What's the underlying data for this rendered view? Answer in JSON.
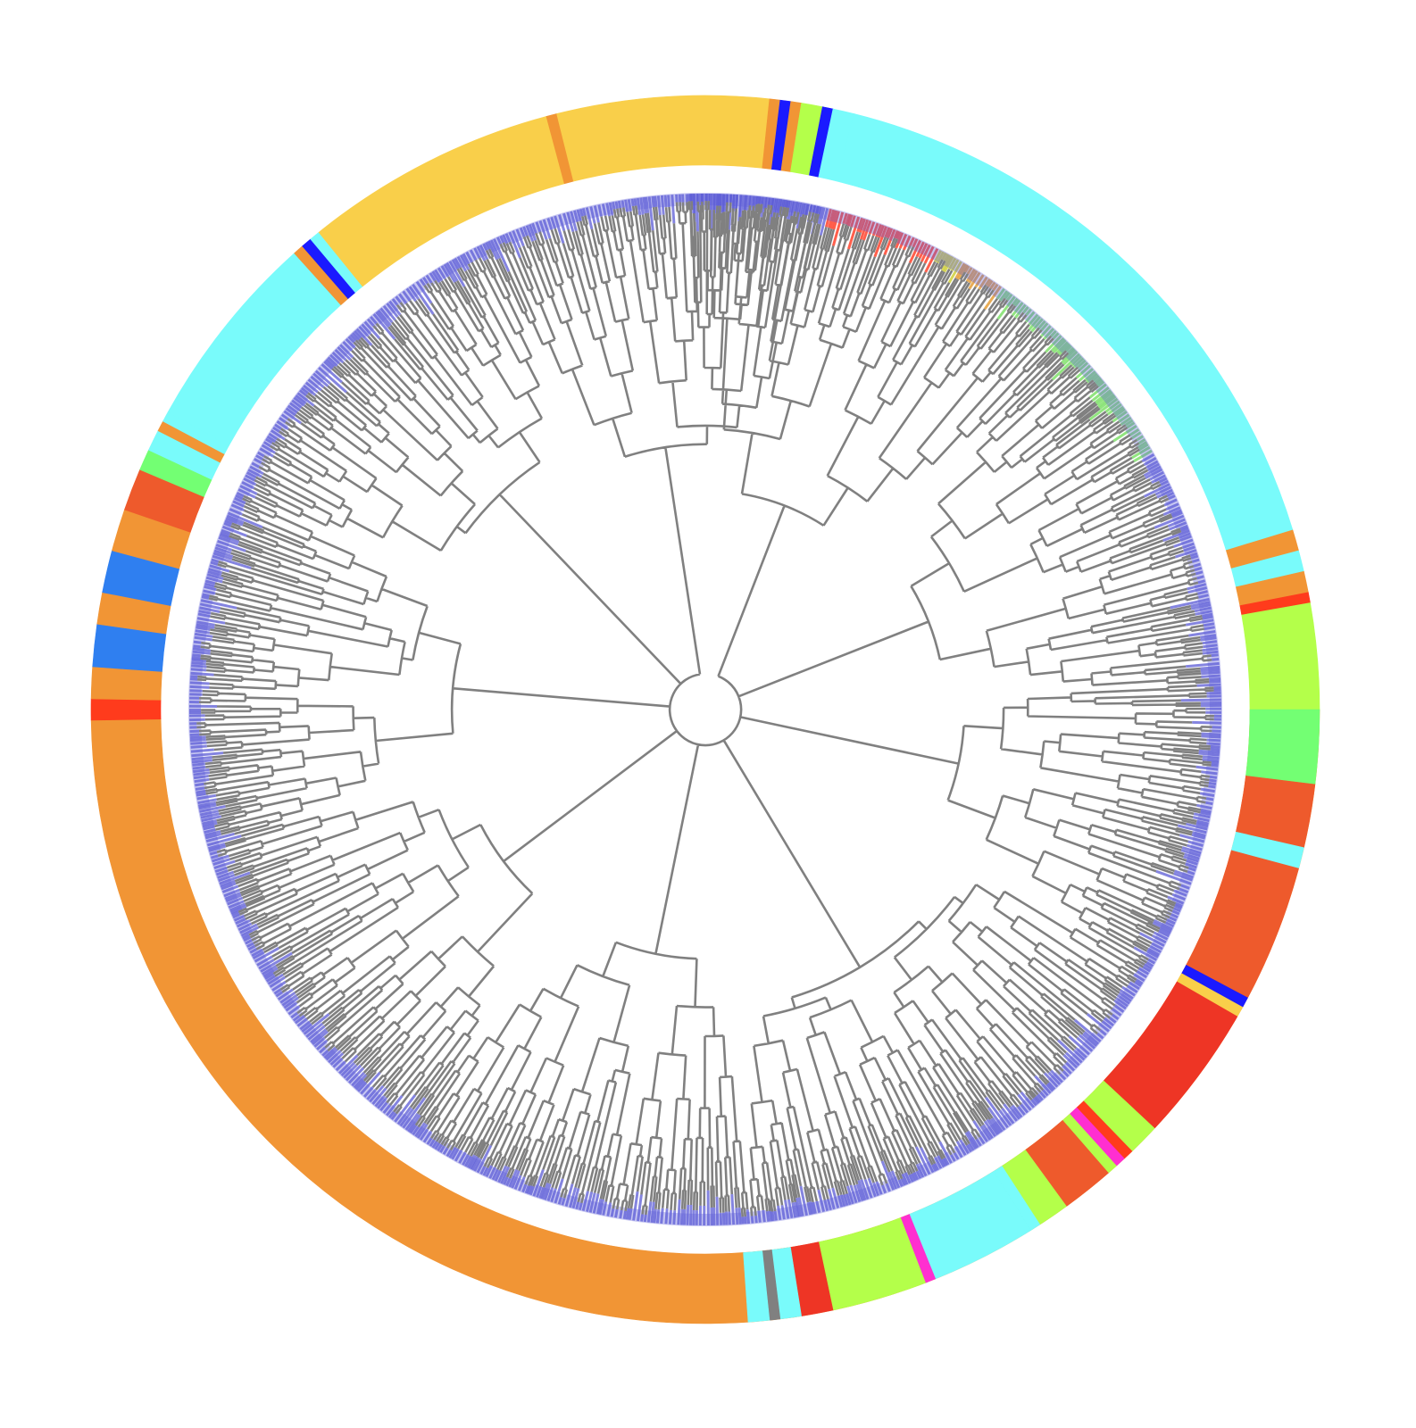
{
  "figure": {
    "type": "circular-phylogenetic-tree",
    "colors": {
      "background": "#ffffff",
      "branch": "#808080",
      "tip_blue": "#5b5bd6",
      "tip_green": "#6edc55",
      "tip_red": "#ff2a10",
      "tip_olive": "#c8c820",
      "tip_orange": "#e0901e"
    },
    "ring_segments": [
      {
        "from_deg": 0,
        "to_deg": 179,
        "color": "#f19535"
      },
      {
        "from_deg": 179,
        "to_deg": 181,
        "color": "#ff3b1c"
      },
      {
        "from_deg": 181,
        "to_deg": 184,
        "color": "#f19535"
      },
      {
        "from_deg": 184,
        "to_deg": 188,
        "color": "#2f7ff0"
      },
      {
        "from_deg": 188,
        "to_deg": 191,
        "color": "#f19535"
      },
      {
        "from_deg": 191,
        "to_deg": 195,
        "color": "#2f7ff0"
      },
      {
        "from_deg": 195,
        "to_deg": 199,
        "color": "#f19535"
      },
      {
        "from_deg": 199,
        "to_deg": 203,
        "color": "#ee5a2c"
      },
      {
        "from_deg": 203,
        "to_deg": 205,
        "color": "#73ff73"
      },
      {
        "from_deg": 205,
        "to_deg": 207,
        "color": "#79fbfb"
      },
      {
        "from_deg": 207,
        "to_deg": 208,
        "color": "#f19535"
      },
      {
        "from_deg": 208,
        "to_deg": 209,
        "color": "#79fbfb"
      },
      {
        "from_deg": 209,
        "to_deg": 228,
        "color": "#79fbfb"
      },
      {
        "from_deg": 228,
        "to_deg": 229,
        "color": "#f19535"
      },
      {
        "from_deg": 229,
        "to_deg": 230,
        "color": "#1a1aff"
      },
      {
        "from_deg": 230,
        "to_deg": 231,
        "color": "#79fbfb"
      },
      {
        "from_deg": 231,
        "to_deg": 255,
        "color": "#f9cf4a"
      },
      {
        "from_deg": 255,
        "to_deg": 256,
        "color": "#f19535"
      },
      {
        "from_deg": 256,
        "to_deg": 276,
        "color": "#f9cf4a"
      },
      {
        "from_deg": 276,
        "to_deg": 277,
        "color": "#f19535"
      },
      {
        "from_deg": 277,
        "to_deg": 278,
        "color": "#1a1aff"
      },
      {
        "from_deg": 278,
        "to_deg": 279,
        "color": "#f19535"
      },
      {
        "from_deg": 279,
        "to_deg": 281,
        "color": "#b4ff4a"
      },
      {
        "from_deg": 281,
        "to_deg": 282,
        "color": "#1a1aff"
      },
      {
        "from_deg": 282,
        "to_deg": 284,
        "color": "#79fbfb"
      },
      {
        "from_deg": 284,
        "to_deg": 343,
        "color": "#79fbfb"
      },
      {
        "from_deg": 343,
        "to_deg": 345,
        "color": "#f19535"
      },
      {
        "from_deg": 345,
        "to_deg": 347,
        "color": "#79fbfb"
      },
      {
        "from_deg": 347,
        "to_deg": 349,
        "color": "#f19535"
      },
      {
        "from_deg": 349,
        "to_deg": 350,
        "color": "#ff3b1c"
      },
      {
        "from_deg": 350,
        "to_deg": 360,
        "color": "#b4ff4a"
      },
      {
        "from_deg": 360,
        "to_deg": 367,
        "color": "#73ff73"
      },
      {
        "from_deg": 367,
        "to_deg": 373,
        "color": "#ee5a2c"
      },
      {
        "from_deg": 373,
        "to_deg": 375,
        "color": "#79fbfb"
      },
      {
        "from_deg": 375,
        "to_deg": 388,
        "color": "#ee5a2c"
      },
      {
        "from_deg": 388,
        "to_deg": 389,
        "color": "#1a1aff"
      },
      {
        "from_deg": 389,
        "to_deg": 390,
        "color": "#f9cf4a"
      },
      {
        "from_deg": 390,
        "to_deg": 403,
        "color": "#ee3525"
      },
      {
        "from_deg": 403,
        "to_deg": 406,
        "color": "#b4ff4a"
      },
      {
        "from_deg": 406,
        "to_deg": 407,
        "color": "#ff3b1c"
      },
      {
        "from_deg": 407,
        "to_deg": 408,
        "color": "#ff2fd0"
      },
      {
        "from_deg": 408,
        "to_deg": 409,
        "color": "#b4ff4a"
      },
      {
        "from_deg": 409,
        "to_deg": 414,
        "color": "#ee5a2c"
      },
      {
        "from_deg": 414,
        "to_deg": 417,
        "color": "#b4ff4a"
      },
      {
        "from_deg": 417,
        "to_deg": 418,
        "color": "#79fbfb"
      },
      {
        "from_deg": 418,
        "to_deg": 428,
        "color": "#79fbfb"
      },
      {
        "from_deg": 428,
        "to_deg": 429,
        "color": "#ff2fd0"
      },
      {
        "from_deg": 429,
        "to_deg": 438,
        "color": "#b4ff4a"
      },
      {
        "from_deg": 438,
        "to_deg": 441,
        "color": "#ee3525"
      },
      {
        "from_deg": 441,
        "to_deg": 443,
        "color": "#79fbfb"
      },
      {
        "from_deg": 443,
        "to_deg": 444,
        "color": "#808080"
      },
      {
        "from_deg": 444,
        "to_deg": 446,
        "color": "#79fbfb"
      }
    ],
    "tip_clades": [
      {
        "from_deg": 284,
        "to_deg": 297,
        "color": "#ff2a10"
      },
      {
        "from_deg": 290,
        "to_deg": 300,
        "color": "#c8c820"
      },
      {
        "from_deg": 297,
        "to_deg": 305,
        "color": "#e0901e"
      },
      {
        "from_deg": 300,
        "to_deg": 330,
        "color": "#6edc55"
      }
    ]
  }
}
